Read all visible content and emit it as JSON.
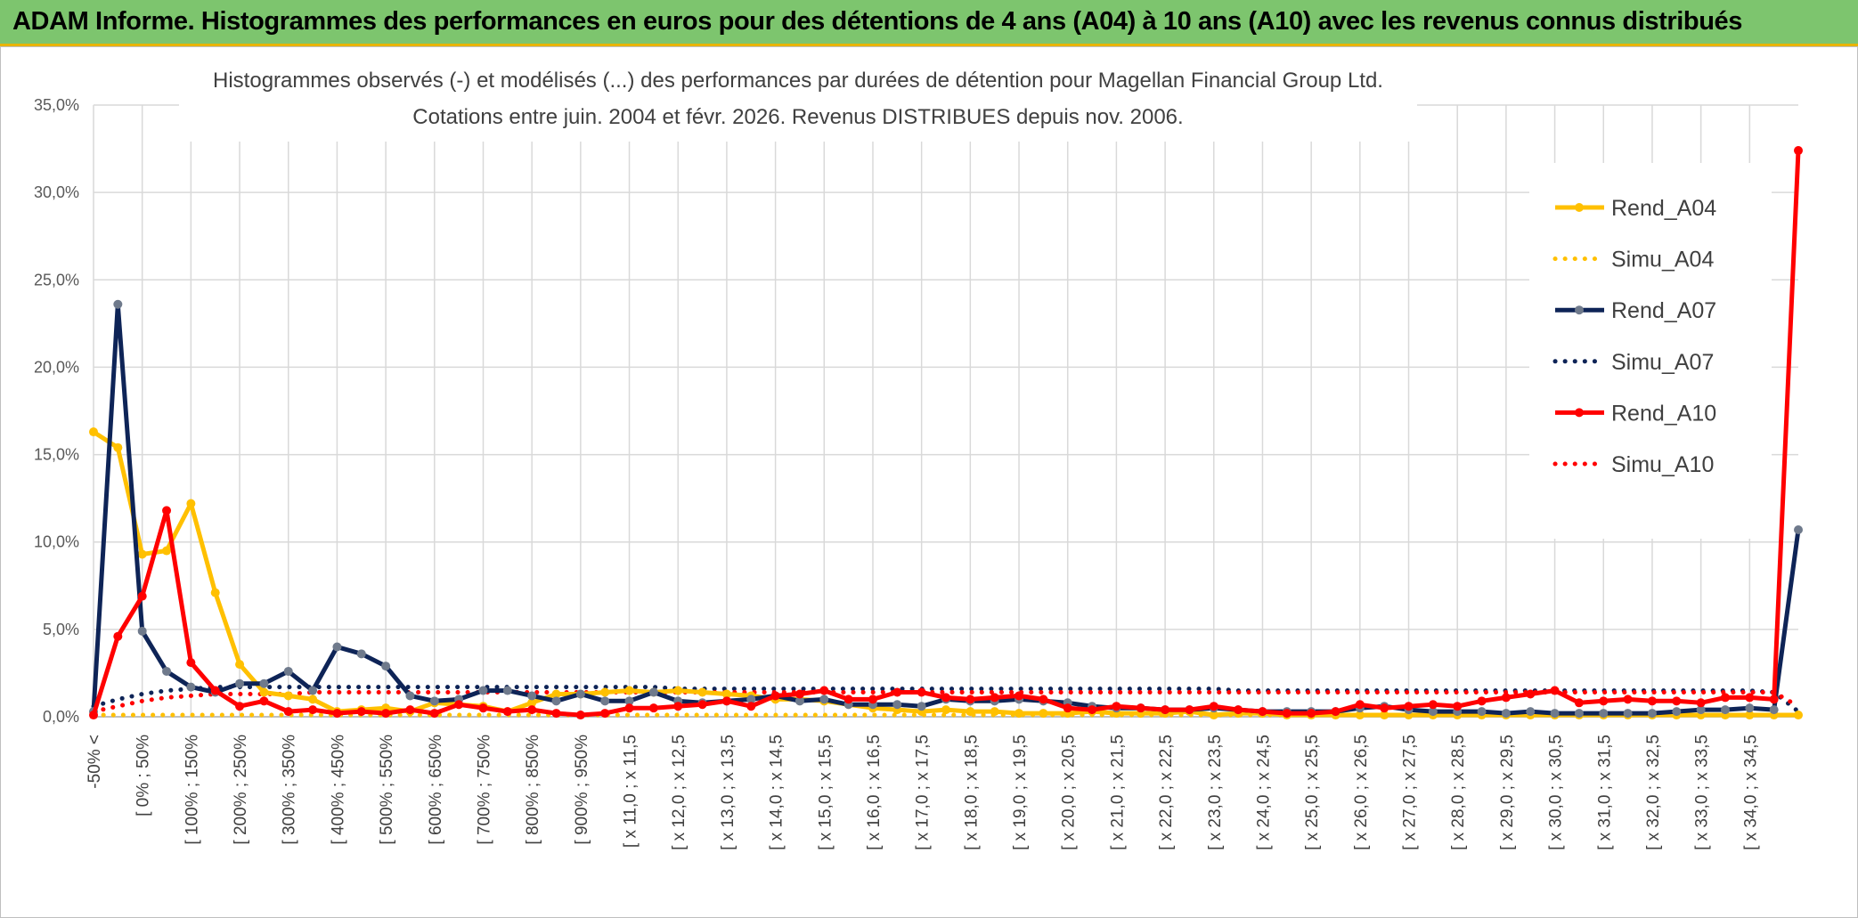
{
  "banner": {
    "title": "ADAM Informe. Histogrammes des performances en euros pour des détentions de 4 ans (A04) à 10 ans (A10) avec les revenus connus distribués"
  },
  "colors": {
    "banner_bg": "#7dc56e",
    "banner_border": "#e8b400",
    "A04": "#ffc000",
    "A07": "#0e2457",
    "A10": "#ff0000",
    "grid": "#d9d9d9"
  },
  "chart_data": {
    "type": "line",
    "title": "Histogrammes observés (-) et modélisés (...) des performances par durées de détention pour Magellan Financial Group Ltd.",
    "subtitle": "Cotations entre juin. 2004 et févr. 2026. Revenus DISTRIBUES depuis nov. 2006.",
    "ylim": [
      0,
      35
    ],
    "y_ticks": [
      "0,0%",
      "5,0%",
      "10,0%",
      "15,0%",
      "20,0%",
      "25,0%",
      "30,0%",
      "35,0%"
    ],
    "grid": true,
    "legend_position": "right",
    "n_points": 71,
    "x_tick_labels": [
      "-50% <",
      "[ 0% ; 50%",
      "[ 100% ; 150%",
      "[ 200% ; 250%",
      "[ 300% ; 350%",
      "[ 400% ; 450%",
      "[ 500% ; 550%",
      "[ 600% ; 650%",
      "[ 700% ; 750%",
      "[ 800% ; 850%",
      "[ 900% ; 950%",
      "[ x 11,0 ; x 11,5",
      "[ x 12,0 ; x 12,5",
      "[ x 13,0 ; x 13,5",
      "[ x 14,0 ; x 14,5",
      "[ x 15,0 ; x 15,5",
      "[ x 16,0 ; x 16,5",
      "[ x 17,0 ; x 17,5",
      "[ x 18,0 ; x 18,5",
      "[ x 19,0 ; x 19,5",
      "[ x 20,0 ; x 20,5",
      "[ x 21,0 ; x 21,5",
      "[ x 22,0 ; x 22,5",
      "[ x 23,0 ; x 23,5",
      "[ x 24,0 ; x 24,5",
      "[ x 25,0 ; x 25,5",
      "[ x 26,0 ; x 26,5",
      "[ x 27,0 ; x 27,5",
      "[ x 28,0 ; x 28,5",
      "[ x 29,0 ; x 29,5",
      "[ x 30,0 ; x 30,5",
      "[ x 31,0 ; x 31,5",
      "[ x 32,0 ; x 32,5",
      "[ x 33,0 ; x 33,5",
      "[ x 34,0 ; x 34,5"
    ],
    "series": [
      {
        "name": "Rend_A04",
        "style": "solid",
        "color": "#ffc000",
        "values": [
          16.3,
          15.4,
          9.3,
          9.5,
          12.2,
          7.1,
          3.0,
          1.4,
          1.2,
          1.0,
          0.3,
          0.4,
          0.5,
          0.3,
          0.8,
          0.7,
          0.6,
          0.3,
          0.8,
          1.3,
          1.3,
          1.4,
          1.5,
          1.4,
          1.5,
          1.4,
          1.3,
          1.2,
          1.0,
          1.0,
          0.9,
          0.7,
          0.5,
          0.4,
          0.3,
          0.4,
          0.3,
          0.3,
          0.2,
          0.2,
          0.2,
          0.3,
          0.2,
          0.2,
          0.2,
          0.3,
          0.1,
          0.2,
          0.2,
          0.1,
          0.1,
          0.1,
          0.1,
          0.1,
          0.1,
          0.1,
          0.1,
          0.1,
          0.1,
          0.1,
          0.1,
          0.1,
          0.1,
          0.1,
          0.1,
          0.1,
          0.1,
          0.1,
          0.1,
          0.1,
          0.1
        ]
      },
      {
        "name": "Simu_A04",
        "style": "dotted",
        "color": "#ffc000",
        "values": [
          0.1,
          0.1,
          0.1,
          0.1,
          0.1,
          0.1,
          0.1,
          0.1,
          0.1,
          0.1,
          0.1,
          0.1,
          0.1,
          0.1,
          0.1,
          0.1,
          0.1,
          0.1,
          0.1,
          0.1,
          0.1,
          0.1,
          0.1,
          0.1,
          0.1,
          0.1,
          0.1,
          0.1,
          0.1,
          0.1,
          0.1,
          0.1,
          0.1,
          0.1,
          0.1,
          0.1,
          0.1,
          0.1,
          0.1,
          0.1,
          0.1,
          0.1,
          0.1,
          0.1,
          0.1,
          0.1,
          0.1,
          0.1,
          0.1,
          0.1,
          0.1,
          0.1,
          0.1,
          0.1,
          0.1,
          0.1,
          0.1,
          0.1,
          0.1,
          0.1,
          0.1,
          0.1,
          0.1,
          0.1,
          0.1,
          0.1,
          0.1,
          0.1,
          0.1,
          0.1,
          0.1
        ]
      },
      {
        "name": "Rend_A07",
        "style": "solid",
        "color": "#0e2457",
        "values": [
          0.3,
          23.6,
          4.9,
          2.6,
          1.7,
          1.4,
          1.9,
          1.9,
          2.6,
          1.5,
          4.0,
          3.6,
          2.9,
          1.2,
          0.9,
          1.0,
          1.5,
          1.5,
          1.2,
          0.9,
          1.3,
          0.9,
          0.9,
          1.4,
          0.9,
          0.8,
          0.9,
          1.0,
          1.2,
          0.9,
          1.0,
          0.7,
          0.7,
          0.7,
          0.6,
          1.0,
          0.9,
          0.9,
          1.0,
          0.9,
          0.8,
          0.6,
          0.5,
          0.5,
          0.4,
          0.4,
          0.5,
          0.4,
          0.3,
          0.3,
          0.3,
          0.3,
          0.5,
          0.6,
          0.4,
          0.3,
          0.3,
          0.3,
          0.2,
          0.3,
          0.2,
          0.2,
          0.2,
          0.2,
          0.2,
          0.3,
          0.4,
          0.4,
          0.5,
          0.4,
          10.7
        ]
      },
      {
        "name": "Simu_A07",
        "style": "dotted",
        "color": "#0e2457",
        "values": [
          0.6,
          1.0,
          1.3,
          1.5,
          1.6,
          1.7,
          1.7,
          1.7,
          1.7,
          1.7,
          1.7,
          1.7,
          1.7,
          1.7,
          1.7,
          1.7,
          1.7,
          1.7,
          1.7,
          1.7,
          1.7,
          1.7,
          1.7,
          1.7,
          1.6,
          1.6,
          1.6,
          1.6,
          1.6,
          1.6,
          1.6,
          1.6,
          1.6,
          1.6,
          1.6,
          1.6,
          1.6,
          1.6,
          1.6,
          1.6,
          1.6,
          1.6,
          1.6,
          1.6,
          1.6,
          1.6,
          1.6,
          1.5,
          1.5,
          1.5,
          1.5,
          1.5,
          1.5,
          1.5,
          1.5,
          1.5,
          1.5,
          1.5,
          1.5,
          1.5,
          1.5,
          1.5,
          1.5,
          1.5,
          1.5,
          1.5,
          1.5,
          1.5,
          1.5,
          1.4,
          0.3
        ]
      },
      {
        "name": "Rend_A10",
        "style": "solid",
        "color": "#ff0000",
        "values": [
          0.1,
          4.6,
          6.9,
          11.8,
          3.1,
          1.5,
          0.6,
          0.9,
          0.3,
          0.4,
          0.2,
          0.3,
          0.2,
          0.4,
          0.2,
          0.7,
          0.5,
          0.3,
          0.4,
          0.2,
          0.1,
          0.2,
          0.5,
          0.5,
          0.6,
          0.7,
          0.9,
          0.6,
          1.2,
          1.3,
          1.5,
          1.0,
          1.0,
          1.4,
          1.4,
          1.1,
          1.0,
          1.1,
          1.2,
          1.0,
          0.5,
          0.4,
          0.6,
          0.5,
          0.4,
          0.4,
          0.6,
          0.4,
          0.3,
          0.2,
          0.2,
          0.3,
          0.7,
          0.5,
          0.6,
          0.7,
          0.6,
          0.9,
          1.1,
          1.3,
          1.5,
          0.8,
          0.9,
          1.0,
          0.9,
          0.9,
          0.8,
          1.1,
          1.1,
          1.0,
          32.4
        ]
      },
      {
        "name": "Simu_A10",
        "style": "dotted",
        "color": "#ff0000",
        "values": [
          0.3,
          0.6,
          0.9,
          1.1,
          1.2,
          1.3,
          1.3,
          1.3,
          1.3,
          1.4,
          1.4,
          1.4,
          1.4,
          1.4,
          1.4,
          1.4,
          1.4,
          1.4,
          1.4,
          1.4,
          1.4,
          1.4,
          1.4,
          1.4,
          1.4,
          1.4,
          1.4,
          1.4,
          1.4,
          1.4,
          1.4,
          1.4,
          1.4,
          1.4,
          1.4,
          1.4,
          1.4,
          1.4,
          1.4,
          1.4,
          1.4,
          1.4,
          1.4,
          1.4,
          1.4,
          1.4,
          1.4,
          1.4,
          1.4,
          1.4,
          1.4,
          1.4,
          1.4,
          1.4,
          1.4,
          1.4,
          1.4,
          1.4,
          1.4,
          1.4,
          1.4,
          1.4,
          1.4,
          1.4,
          1.4,
          1.4,
          1.4,
          1.4,
          1.4,
          1.4,
          0.6
        ]
      }
    ]
  }
}
